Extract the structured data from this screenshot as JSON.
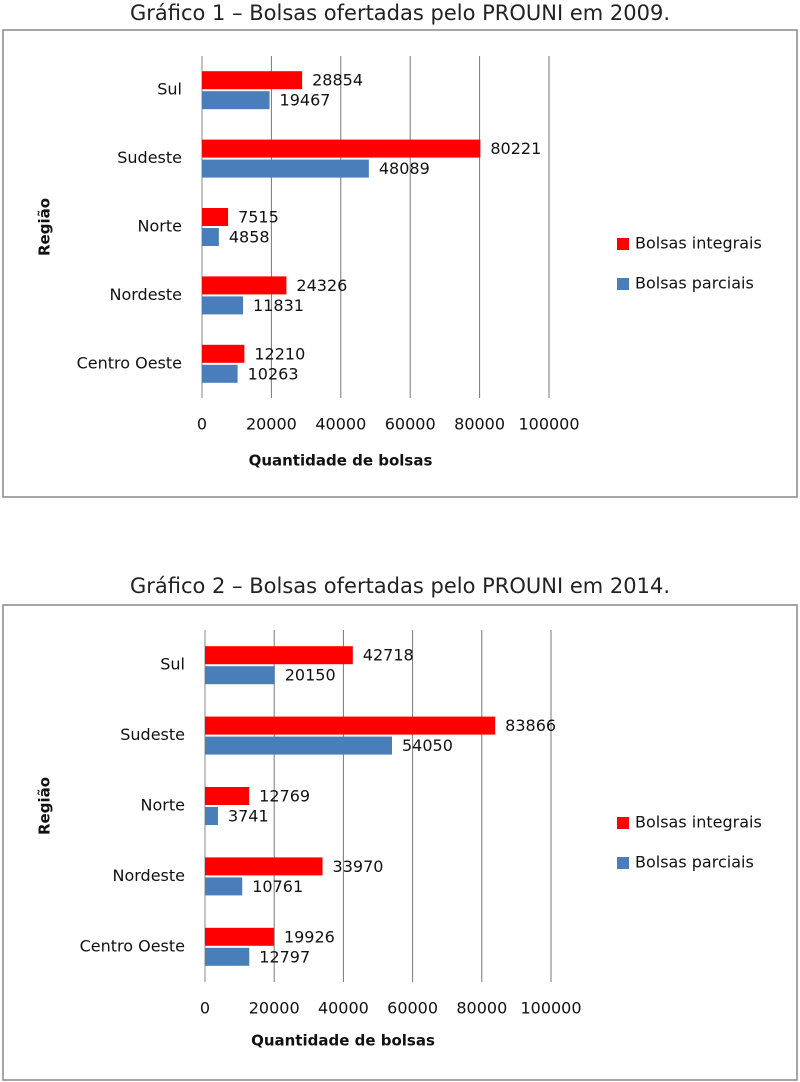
{
  "chart_data": [
    {
      "type": "bar",
      "orientation": "horizontal",
      "title": "Gráfico 1 – Bolsas ofertadas pelo PROUNI em 2009.",
      "x_label": "Quantidade de bolsas",
      "y_label": "Região",
      "categories": [
        "Sul",
        "Sudeste",
        "Norte",
        "Nordeste",
        "Centro Oeste"
      ],
      "series": [
        {
          "name": "Bolsas integrais",
          "color": "#ff0000",
          "values": [
            28854,
            80221,
            7515,
            24326,
            12210
          ]
        },
        {
          "name": "Bolsas parciais",
          "color": "#4a7ebb",
          "values": [
            19467,
            48089,
            4858,
            11831,
            10263
          ]
        }
      ],
      "xlim": [
        0,
        100000
      ],
      "xticks": [
        0,
        20000,
        40000,
        60000,
        80000,
        100000
      ],
      "grid": true,
      "legend": "right"
    },
    {
      "type": "bar",
      "orientation": "horizontal",
      "title": "Gráfico 2 – Bolsas ofertadas pelo PROUNI em 2014.",
      "x_label": "Quantidade de bolsas",
      "y_label": "Região",
      "categories": [
        "Sul",
        "Sudeste",
        "Norte",
        "Nordeste",
        "Centro Oeste"
      ],
      "series": [
        {
          "name": "Bolsas integrais",
          "color": "#ff0000",
          "values": [
            42718,
            83866,
            12769,
            33970,
            19926
          ]
        },
        {
          "name": "Bolsas parciais",
          "color": "#4a7ebb",
          "values": [
            20150,
            54050,
            3741,
            10761,
            12797
          ]
        }
      ],
      "xlim": [
        0,
        100000
      ],
      "xticks": [
        0,
        20000,
        40000,
        60000,
        80000,
        100000
      ],
      "grid": true,
      "legend": "right"
    }
  ]
}
